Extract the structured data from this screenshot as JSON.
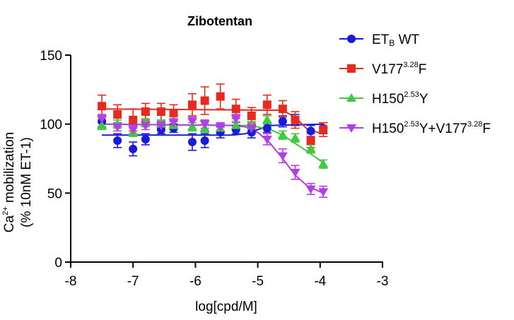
{
  "chart_data": {
    "type": "scatter",
    "title": "Zibotentan",
    "xlabel": "log[cpd/M]",
    "ylabel": {
      "line1_prefix": "Ca",
      "line1_sup": "2+",
      "line1_suffix": " mobilization",
      "line2": "(% 10nM ET-1)"
    },
    "xlim": [
      -8,
      -3
    ],
    "ylim": [
      0,
      150
    ],
    "xticks": [
      -8,
      -7,
      -6,
      -5,
      -4,
      -3
    ],
    "yticks": [
      0,
      50,
      100,
      150
    ],
    "x": [
      -7.5,
      -7.25,
      -7.0,
      -6.8,
      -6.55,
      -6.35,
      -6.05,
      -5.85,
      -5.6,
      -5.35,
      -5.1,
      -4.85,
      -4.6,
      -4.4,
      -4.15,
      -3.95
    ],
    "series": [
      {
        "name": "ETB WT",
        "legend": {
          "main": "ET",
          "sub": "B",
          "rest": " WT",
          "sup": "",
          "rest2": "",
          "sup2": "",
          "rest3": ""
        },
        "color": "#1a1adc",
        "marker": "circle",
        "values": [
          102,
          88,
          82,
          89,
          96,
          97,
          87,
          88,
          94,
          96,
          94,
          97,
          102,
          103,
          95,
          97
        ],
        "errors": [
          4,
          5,
          5,
          4,
          3,
          3,
          6,
          5,
          4,
          3,
          4,
          3,
          4,
          4,
          4,
          4
        ],
        "fit_x": [
          -7.5,
          -5.4,
          -5.2,
          -5.0,
          -4.8,
          -3.95
        ],
        "fit_y": [
          92,
          92,
          93,
          96,
          99,
          100
        ]
      },
      {
        "name": "V177 3.28 F",
        "legend": {
          "main": "V177",
          "sub": "",
          "rest": "",
          "sup": "3.28",
          "rest2": "F",
          "sup2": "",
          "rest3": ""
        },
        "color": "#e62b1e",
        "marker": "square",
        "values": [
          113,
          107,
          103,
          109,
          109,
          108,
          114,
          117,
          120,
          111,
          106,
          114,
          111,
          103,
          88,
          96
        ],
        "errors": [
          8,
          7,
          8,
          6,
          6,
          6,
          8,
          10,
          9,
          7,
          6,
          7,
          6,
          6,
          5,
          5
        ],
        "fit_x": [
          -7.5,
          -4.6,
          -4.4,
          -4.2,
          -3.95
        ],
        "fit_y": [
          111,
          110,
          105,
          96,
          93
        ]
      },
      {
        "name": "H150 2.53 Y",
        "legend": {
          "main": "H150",
          "sub": "",
          "rest": "",
          "sup": "2.53",
          "rest2": "Y",
          "sup2": "",
          "rest3": ""
        },
        "color": "#3fc93f",
        "marker": "triangle-up",
        "values": [
          99,
          100,
          94,
          101,
          100,
          99,
          98,
          97,
          97,
          99,
          99,
          103,
          92,
          90,
          82,
          71
        ],
        "errors": [
          3,
          3,
          3,
          3,
          3,
          3,
          3,
          3,
          3,
          3,
          3,
          3,
          3,
          3,
          3,
          3
        ],
        "fit_x": [
          -7.5,
          -5.2,
          -5.0,
          -4.8,
          -4.6,
          -4.4,
          -4.2,
          -3.95
        ],
        "fit_y": [
          100,
          99,
          98,
          96,
          92,
          86,
          80,
          72
        ]
      },
      {
        "name": "H150 2.53 Y+V177 3.28 F",
        "legend": {
          "main": "H150",
          "sub": "",
          "rest": "",
          "sup": "2.53",
          "rest2": "Y+V177",
          "sup2": "3.28",
          "rest3": "F"
        },
        "color": "#b33ee6",
        "marker": "triangle-down",
        "values": [
          104,
          98,
          96,
          99,
          99,
          101,
          102,
          100,
          98,
          104,
          97,
          89,
          77,
          65,
          53,
          51
        ],
        "errors": [
          3,
          3,
          3,
          3,
          3,
          3,
          3,
          3,
          3,
          3,
          4,
          4,
          5,
          5,
          4,
          4
        ],
        "fit_x": [
          -7.5,
          -5.4,
          -5.2,
          -5.0,
          -4.8,
          -4.6,
          -4.4,
          -4.2,
          -3.95
        ],
        "fit_y": [
          100,
          99,
          98,
          94,
          86,
          75,
          63,
          55,
          50
        ]
      }
    ]
  }
}
